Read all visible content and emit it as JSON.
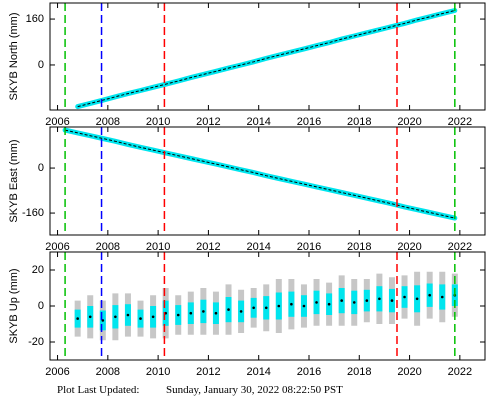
{
  "chart_data": [
    {
      "type": "line",
      "y_label": "SKYB North (mm)",
      "color": "#00e5ee",
      "trend_color": "#000000",
      "x": [
        2006.8,
        2007.3,
        2007.8,
        2008.3,
        2008.8,
        2009.3,
        2009.8,
        2010.3,
        2010.8,
        2011.3,
        2011.8,
        2012.3,
        2012.8,
        2013.3,
        2013.8,
        2014.3,
        2014.8,
        2015.3,
        2015.8,
        2016.3,
        2016.8,
        2017.3,
        2017.8,
        2018.3,
        2018.8,
        2019.3,
        2019.8,
        2020.3,
        2020.8,
        2021.3,
        2021.8
      ],
      "values": [
        -145,
        -134,
        -123,
        -111,
        -100,
        -89,
        -78,
        -67,
        -56,
        -44,
        -33,
        -22,
        -11,
        0,
        11,
        23,
        34,
        45,
        56,
        67,
        78,
        90,
        101,
        112,
        123,
        134,
        145,
        157,
        168,
        179,
        190
      ],
      "xlim": [
        2005.7,
        2023.0
      ],
      "ylim": [
        -157,
        216
      ],
      "xticks": [
        2006,
        2008,
        2010,
        2012,
        2014,
        2016,
        2018,
        2020,
        2022
      ],
      "yticks": [
        0,
        160
      ],
      "vlines": [
        {
          "x": 2006.3,
          "color": "#00c000"
        },
        {
          "x": 2007.75,
          "color": "#0000ff"
        },
        {
          "x": 2010.25,
          "color": "#ff0000"
        },
        {
          "x": 2019.5,
          "color": "#ff0000"
        },
        {
          "x": 2021.8,
          "color": "#00c000"
        }
      ]
    },
    {
      "type": "line",
      "y_label": "SKYB East (mm)",
      "color": "#00e5ee",
      "trend_color": "#000000",
      "x": [
        2006.3,
        2006.8,
        2007.3,
        2007.8,
        2008.3,
        2008.8,
        2009.3,
        2009.8,
        2010.3,
        2010.8,
        2011.3,
        2011.8,
        2012.3,
        2012.8,
        2013.3,
        2013.8,
        2014.3,
        2014.8,
        2015.3,
        2015.8,
        2016.3,
        2016.8,
        2017.3,
        2017.8,
        2018.3,
        2018.8,
        2019.3,
        2019.8,
        2020.3,
        2020.8,
        2021.3,
        2021.8
      ],
      "values": [
        135,
        125,
        115,
        105,
        95,
        84,
        74,
        64,
        54,
        44,
        34,
        24,
        14,
        4,
        -6,
        -16,
        -27,
        -37,
        -47,
        -57,
        -67,
        -77,
        -87,
        -97,
        -107,
        -117,
        -127,
        -138,
        -148,
        -158,
        -168,
        -178
      ],
      "xlim": [
        2005.7,
        2023.0
      ],
      "ylim": [
        -238,
        146
      ],
      "xticks": [
        2006,
        2008,
        2010,
        2012,
        2014,
        2016,
        2018,
        2020,
        2022
      ],
      "yticks": [
        -160,
        0
      ],
      "vlines": [
        {
          "x": 2006.3,
          "color": "#00c000"
        },
        {
          "x": 2007.75,
          "color": "#0000ff"
        },
        {
          "x": 2010.25,
          "color": "#ff0000"
        },
        {
          "x": 2019.5,
          "color": "#ff0000"
        },
        {
          "x": 2021.8,
          "color": "#00c000"
        }
      ]
    },
    {
      "type": "scatter",
      "y_label": "SKYB Up (mm)",
      "color": "#00e5ee",
      "trend_color": "#000000",
      "error_color": "#b0b0b0",
      "x": [
        2006.8,
        2007.3,
        2007.8,
        2008.3,
        2008.8,
        2009.3,
        2009.8,
        2010.3,
        2010.8,
        2011.3,
        2011.8,
        2012.3,
        2012.8,
        2013.3,
        2013.8,
        2014.3,
        2014.8,
        2015.3,
        2015.8,
        2016.3,
        2016.8,
        2017.3,
        2017.8,
        2018.3,
        2018.8,
        2019.3,
        2019.8,
        2020.3,
        2020.8,
        2021.3,
        2021.8
      ],
      "values": [
        -7,
        -6,
        -8,
        -6,
        -5,
        -7,
        -6,
        -4,
        -5,
        -4,
        -3,
        -4,
        -2,
        -3,
        -1,
        -1,
        0,
        1,
        0,
        2,
        1,
        3,
        2,
        3,
        4,
        3,
        5,
        4,
        6,
        5,
        6
      ],
      "errors": [
        10,
        12,
        11,
        13,
        12,
        10,
        12,
        14,
        11,
        12,
        13,
        12,
        14,
        12,
        11,
        13,
        15,
        14,
        12,
        13,
        12,
        14,
        13,
        12,
        14,
        13,
        12,
        15,
        13,
        14,
        12
      ],
      "xlim": [
        2005.7,
        2023.0
      ],
      "ylim": [
        -30,
        30
      ],
      "xticks": [
        2006,
        2008,
        2010,
        2012,
        2014,
        2016,
        2018,
        2020,
        2022
      ],
      "yticks": [
        -20,
        0,
        20
      ],
      "vlines": [
        {
          "x": 2006.3,
          "color": "#00c000"
        },
        {
          "x": 2007.75,
          "color": "#0000ff"
        },
        {
          "x": 2010.25,
          "color": "#ff0000"
        },
        {
          "x": 2019.5,
          "color": "#ff0000"
        },
        {
          "x": 2021.8,
          "color": "#00c000"
        }
      ]
    }
  ],
  "footer": {
    "label": "Plot Last Updated:",
    "timestamp": "Sunday, January 30, 2022 08:22:50 PST"
  }
}
